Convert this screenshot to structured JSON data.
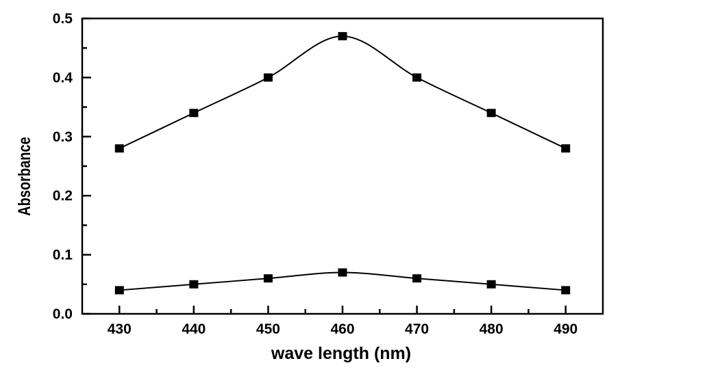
{
  "chart_data": {
    "type": "line",
    "title": "",
    "xlabel": "wave length (nm)",
    "ylabel": "Absorbance",
    "xlim": [
      425,
      495
    ],
    "ylim": [
      0,
      0.5
    ],
    "x_ticks": [
      "430",
      "440",
      "450",
      "460",
      "470",
      "480",
      "490"
    ],
    "y_ticks": [
      "0.0",
      "0.1",
      "0.2",
      "0.3",
      "0.4",
      "0.5"
    ],
    "grid": false,
    "marker": "square",
    "line_style": "smooth",
    "color": "#000000",
    "x": [
      430,
      440,
      450,
      460,
      470,
      480,
      490
    ],
    "series": [
      {
        "values": [
          0.28,
          0.34,
          0.4,
          0.47,
          0.4,
          0.34,
          0.28
        ]
      },
      {
        "values": [
          0.04,
          0.05,
          0.06,
          0.07,
          0.06,
          0.05,
          0.04
        ]
      }
    ]
  }
}
